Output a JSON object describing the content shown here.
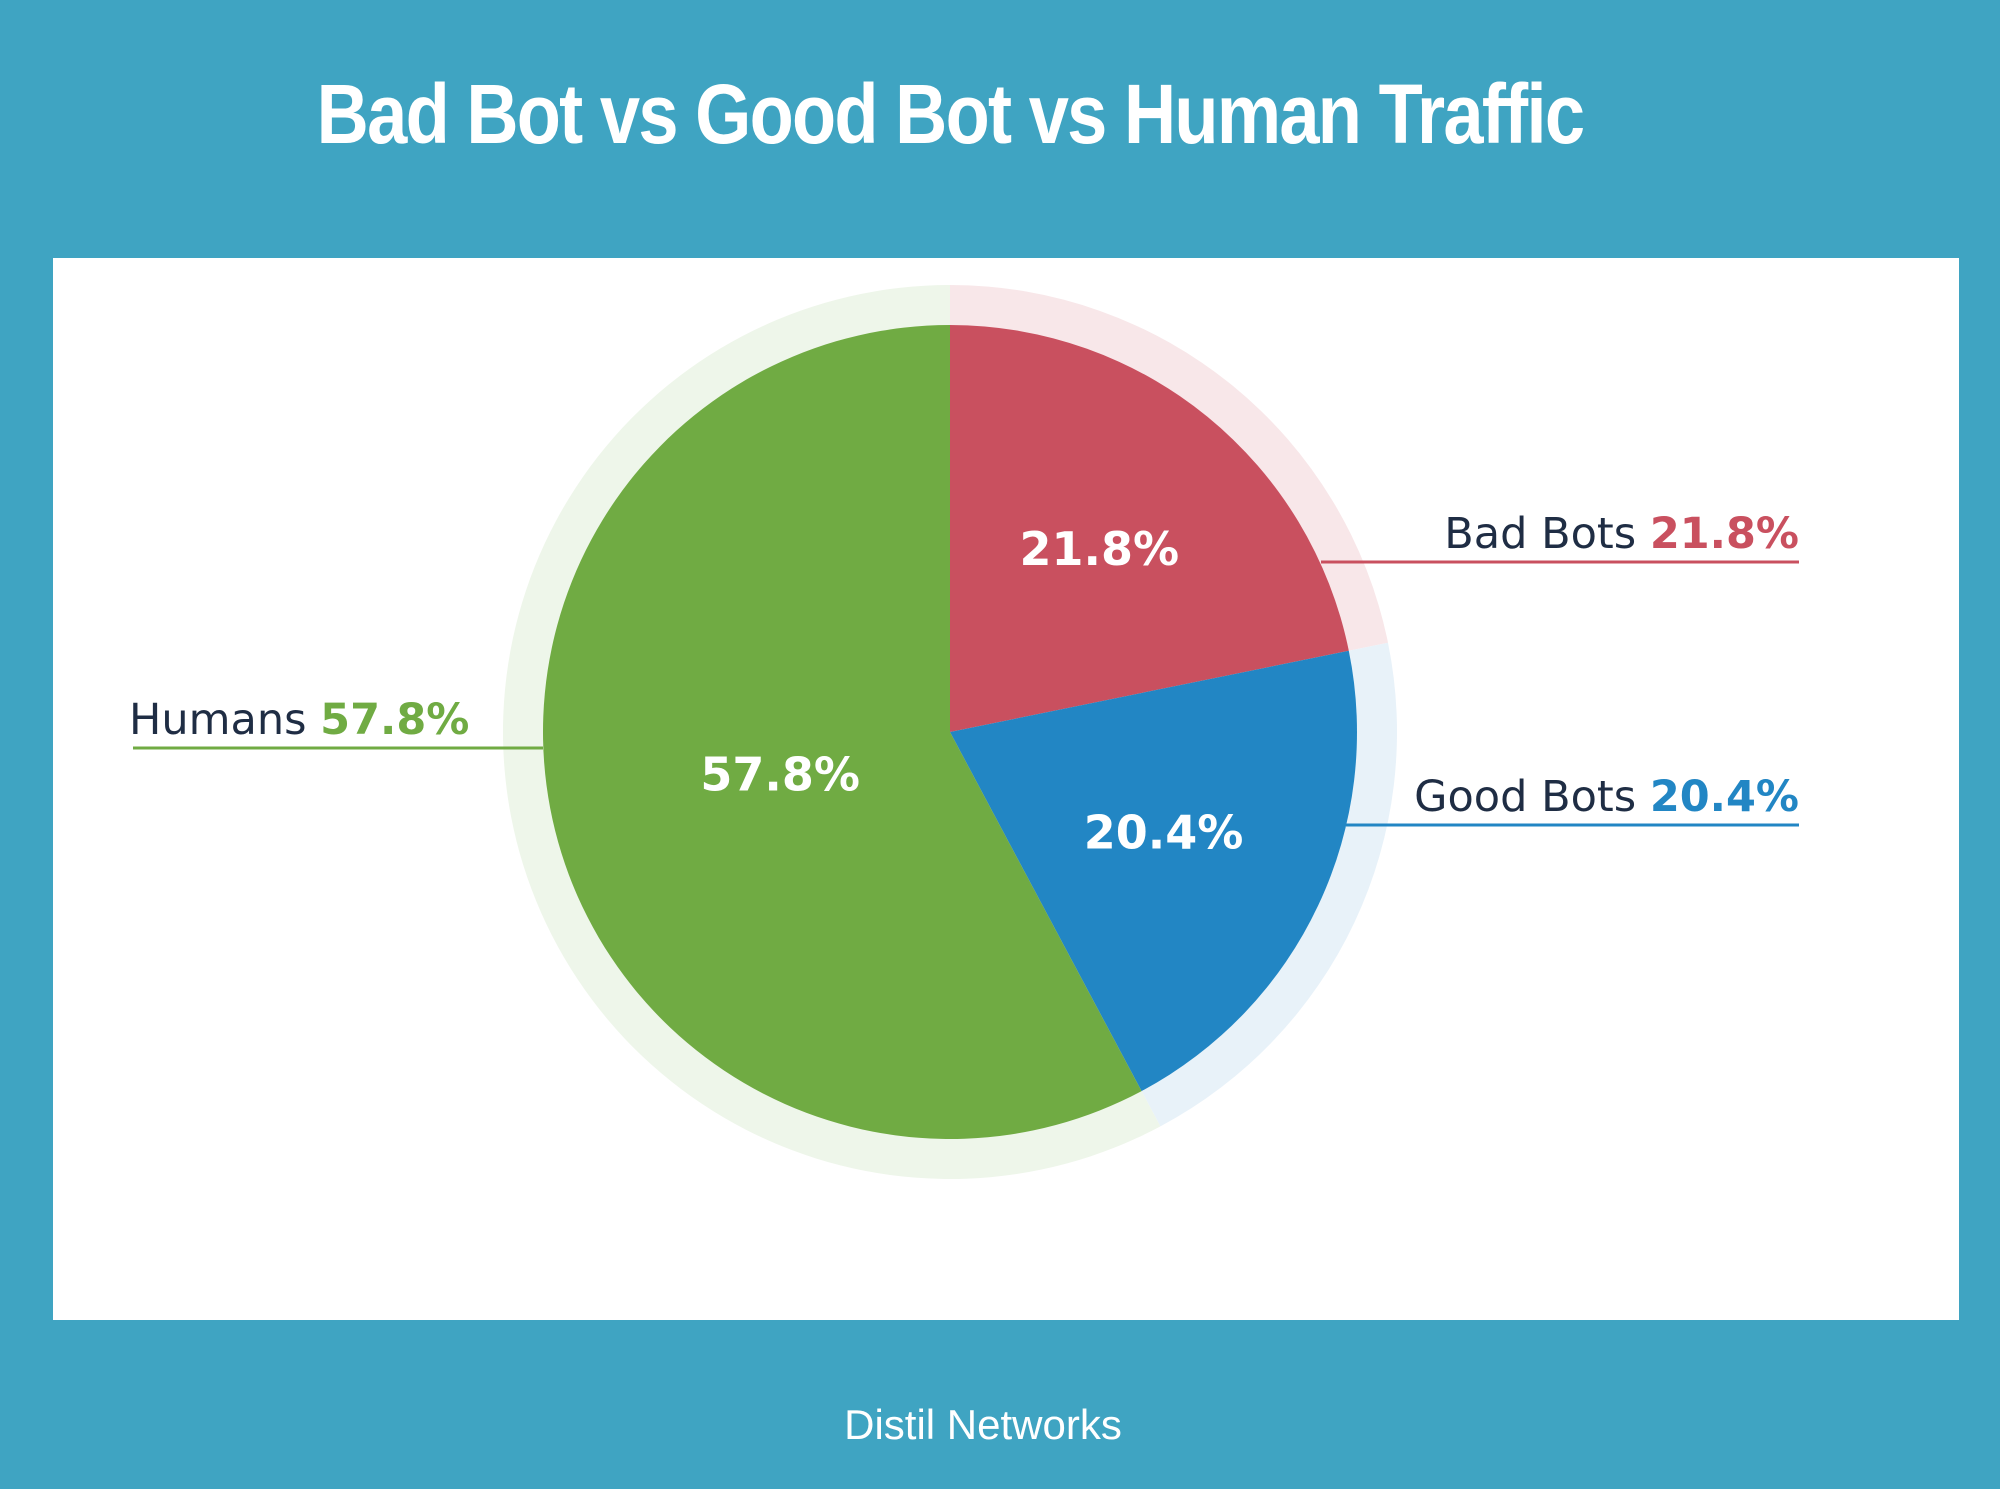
{
  "title": "Bad Bot vs Good Bot vs Human Traffic",
  "source": "Distil Networks",
  "colors": {
    "background": "#3fa4c2",
    "panel": "#ffffff",
    "bad_bots": "#c9505f",
    "good_bots": "#2286c4",
    "humans": "#70ab43",
    "legend_text": "#1f2d44"
  },
  "chart_data": {
    "type": "pie",
    "title": "Bad Bot vs Good Bot vs Human Traffic",
    "slices": [
      {
        "name": "Bad Bots",
        "value": 21.8,
        "label": "21.8%",
        "color": "#c9505f",
        "halo": "#f8e7e9"
      },
      {
        "name": "Good Bots",
        "value": 20.4,
        "label": "20.4%",
        "color": "#2286c4",
        "halo": "#e8f2f9"
      },
      {
        "name": "Humans",
        "value": 57.8,
        "label": "57.8%",
        "color": "#70ab43",
        "halo": "#eef6ea"
      }
    ],
    "start_angle": "12 o'clock",
    "direction": "clockwise",
    "legend": [
      {
        "name": "Bad Bots",
        "value_label": "21.8%",
        "color": "#c9505f",
        "side": "right"
      },
      {
        "name": "Good Bots",
        "value_label": "20.4%",
        "color": "#2286c4",
        "side": "right"
      },
      {
        "name": "Humans",
        "value_label": "57.8%",
        "color": "#70ab43",
        "side": "left"
      }
    ]
  }
}
